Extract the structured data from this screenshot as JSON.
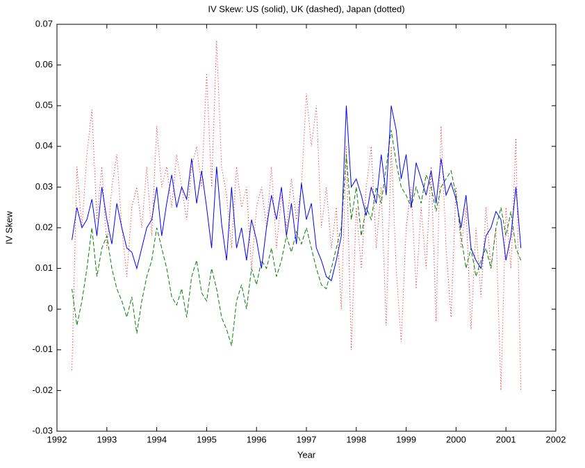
{
  "chart_data": {
    "type": "line",
    "title": "IV Skew: US (solid), UK (dashed), Japan (dotted)",
    "x_label": "Year",
    "y_label": "IV Skew",
    "xlim": [
      1992,
      2002
    ],
    "xticks": [
      1992,
      1993,
      1994,
      1995,
      1996,
      1997,
      1998,
      1999,
      2000,
      2001,
      2002
    ],
    "ylim": [
      -0.03,
      0.07
    ],
    "yticks": [
      -0.03,
      -0.02,
      -0.01,
      0,
      0.01,
      0.02,
      0.03,
      0.04,
      0.05,
      0.06,
      0.07
    ],
    "grid": false,
    "x": [
      1992.3,
      1992.4,
      1992.5,
      1992.6,
      1992.7,
      1992.8,
      1992.9,
      1993.0,
      1993.1,
      1993.2,
      1993.3,
      1993.4,
      1993.5,
      1993.6,
      1993.7,
      1993.8,
      1993.9,
      1994.0,
      1994.1,
      1994.2,
      1994.3,
      1994.4,
      1994.5,
      1994.6,
      1994.7,
      1994.8,
      1994.9,
      1995.0,
      1995.1,
      1995.2,
      1995.3,
      1995.4,
      1995.5,
      1995.6,
      1995.7,
      1995.8,
      1995.9,
      1996.0,
      1996.1,
      1996.2,
      1996.3,
      1996.4,
      1996.5,
      1996.6,
      1996.7,
      1996.8,
      1996.9,
      1997.0,
      1997.1,
      1997.2,
      1997.3,
      1997.4,
      1997.5,
      1997.6,
      1997.7,
      1997.8,
      1997.9,
      1998.0,
      1998.1,
      1998.2,
      1998.3,
      1998.4,
      1998.5,
      1998.6,
      1998.7,
      1998.8,
      1998.9,
      1999.0,
      1999.1,
      1999.2,
      1999.3,
      1999.4,
      1999.5,
      1999.6,
      1999.7,
      1999.8,
      1999.9,
      2000.0,
      2000.1,
      2000.2,
      2000.3,
      2000.4,
      2000.5,
      2000.6,
      2000.7,
      2000.8,
      2000.9,
      2001.0,
      2001.1,
      2001.2,
      2001.3
    ],
    "series": [
      {
        "color": "#0000ff",
        "dash": "solid",
        "values": [
          0.017,
          0.025,
          0.02,
          0.022,
          0.027,
          0.018,
          0.03,
          0.022,
          0.016,
          0.026,
          0.02,
          0.015,
          0.014,
          0.01,
          0.015,
          0.02,
          0.022,
          0.03,
          0.018,
          0.026,
          0.033,
          0.025,
          0.03,
          0.027,
          0.037,
          0.026,
          0.034,
          0.025,
          0.015,
          0.035,
          0.021,
          0.012,
          0.03,
          0.015,
          0.02,
          0.012,
          0.022,
          0.017,
          0.01,
          0.02,
          0.028,
          0.022,
          0.03,
          0.018,
          0.026,
          0.016,
          0.031,
          0.022,
          0.026,
          0.015,
          0.012,
          0.008,
          0.007,
          0.012,
          0.018,
          0.05,
          0.03,
          0.032,
          0.028,
          0.023,
          0.03,
          0.026,
          0.038,
          0.028,
          0.05,
          0.044,
          0.032,
          0.038,
          0.025,
          0.036,
          0.032,
          0.028,
          0.034,
          0.026,
          0.037,
          0.028,
          0.031,
          0.027,
          0.02,
          0.028,
          0.015,
          0.012,
          0.01,
          0.018,
          0.02,
          0.024,
          0.022,
          0.012,
          0.018,
          0.03,
          0.015
        ]
      },
      {
        "color": "#007f00",
        "dash": "dashed",
        "values": [
          0.005,
          -0.004,
          0.002,
          0.01,
          0.02,
          0.008,
          0.015,
          0.018,
          0.01,
          0.005,
          0.002,
          -0.002,
          0.003,
          -0.006,
          0.002,
          0.008,
          0.012,
          0.02,
          0.015,
          0.01,
          0.003,
          0.001,
          0.005,
          -0.002,
          0.008,
          0.012,
          0.004,
          0.002,
          0.01,
          0.005,
          -0.002,
          -0.005,
          -0.009,
          0.002,
          0.006,
          0.0,
          0.01,
          0.006,
          0.012,
          0.01,
          0.015,
          0.008,
          0.012,
          0.018,
          0.014,
          0.019,
          0.016,
          0.02,
          0.015,
          0.01,
          0.006,
          0.005,
          0.01,
          0.015,
          0.02,
          0.038,
          0.022,
          0.03,
          0.018,
          0.025,
          0.022,
          0.03,
          0.026,
          0.035,
          0.044,
          0.036,
          0.03,
          0.028,
          0.025,
          0.03,
          0.026,
          0.033,
          0.03,
          0.024,
          0.03,
          0.032,
          0.034,
          0.028,
          0.018,
          0.01,
          0.015,
          0.008,
          0.012,
          0.015,
          0.01,
          0.02,
          0.025,
          0.018,
          0.024,
          0.015,
          0.012
        ]
      },
      {
        "color": "#ff0000",
        "dash": "dotted",
        "values": [
          -0.015,
          0.035,
          0.02,
          0.038,
          0.049,
          0.022,
          0.035,
          0.015,
          0.03,
          0.038,
          0.02,
          0.008,
          0.025,
          0.03,
          0.02,
          0.035,
          0.018,
          0.045,
          0.03,
          0.035,
          0.025,
          0.038,
          0.03,
          0.022,
          0.035,
          0.04,
          0.03,
          0.058,
          0.03,
          0.066,
          0.035,
          0.028,
          0.015,
          0.035,
          0.025,
          0.03,
          0.01,
          0.025,
          0.03,
          0.02,
          0.035,
          0.015,
          0.028,
          0.02,
          0.032,
          0.022,
          0.03,
          0.053,
          0.04,
          0.05,
          0.02,
          0.03,
          0.015,
          0.025,
          0.0,
          0.04,
          -0.01,
          0.025,
          0.01,
          0.03,
          0.04,
          0.015,
          0.03,
          -0.004,
          0.04,
          0.01,
          -0.008,
          0.02,
          0.03,
          0.005,
          0.025,
          0.01,
          0.035,
          -0.003,
          0.045,
          0.015,
          -0.002,
          0.03,
          0.015,
          0.025,
          -0.005,
          0.02,
          0.003,
          0.025,
          0.01,
          0.02,
          -0.02,
          0.025,
          0.01,
          0.042,
          -0.02
        ]
      }
    ]
  }
}
